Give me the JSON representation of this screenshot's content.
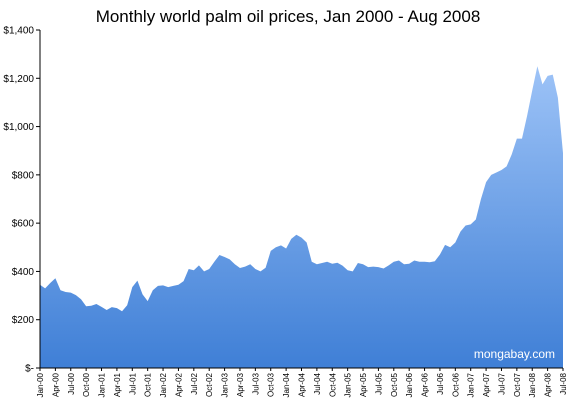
{
  "chart_data": {
    "type": "area",
    "title": "Monthly world palm oil prices, Jan 2000 - Aug 2008",
    "xlabel": "",
    "ylabel": "",
    "ylim": [
      0,
      1400
    ],
    "y_ticks": [
      0,
      200,
      400,
      600,
      800,
      1000,
      1200,
      1400
    ],
    "y_tick_labels": [
      "$-",
      "$200",
      "$400",
      "$600",
      "$800",
      "$1,000",
      "$1,200",
      "$1,400"
    ],
    "x_tick_labels": [
      "Jan-00",
      "Apr-00",
      "Jul-00",
      "Oct-00",
      "Jan-01",
      "Apr-01",
      "Jul-01",
      "Oct-01",
      "Jan-02",
      "Apr-02",
      "Jul-02",
      "Oct-02",
      "Jan-03",
      "Apr-03",
      "Jul-03",
      "Oct-03",
      "Jan-04",
      "Apr-04",
      "Jul-04",
      "Oct-04",
      "Jan-05",
      "Apr-05",
      "Jul-05",
      "Oct-05",
      "Jan-06",
      "Apr-06",
      "Jul-06",
      "Oct-06",
      "Jan-07",
      "Apr-07",
      "Jul-07",
      "Oct-07",
      "Jan-08",
      "Apr-08",
      "Jul-08"
    ],
    "x_tick_step_months": 3,
    "grid": false,
    "legend": "none",
    "colors": {
      "fill_top": "#9dc3f7",
      "fill_bottom": "#3f7fd6",
      "axis": "#000000"
    },
    "annotation": "mongabay.com",
    "values": [
      345,
      330,
      352,
      372,
      322,
      315,
      312,
      302,
      285,
      256,
      258,
      265,
      253,
      240,
      252,
      248,
      235,
      260,
      335,
      362,
      305,
      277,
      322,
      340,
      342,
      335,
      340,
      345,
      360,
      410,
      405,
      425,
      400,
      410,
      440,
      468,
      460,
      450,
      430,
      414,
      420,
      430,
      410,
      400,
      415,
      485,
      500,
      508,
      495,
      535,
      552,
      540,
      520,
      440,
      430,
      435,
      440,
      432,
      436,
      424,
      405,
      400,
      435,
      430,
      418,
      420,
      418,
      412,
      425,
      440,
      445,
      430,
      432,
      445,
      440,
      440,
      438,
      442,
      470,
      510,
      500,
      520,
      565,
      590,
      595,
      615,
      700,
      770,
      800,
      810,
      820,
      835,
      885,
      950,
      950,
      1045,
      1150,
      1250,
      1175,
      1210,
      1215,
      1120,
      890
    ]
  }
}
